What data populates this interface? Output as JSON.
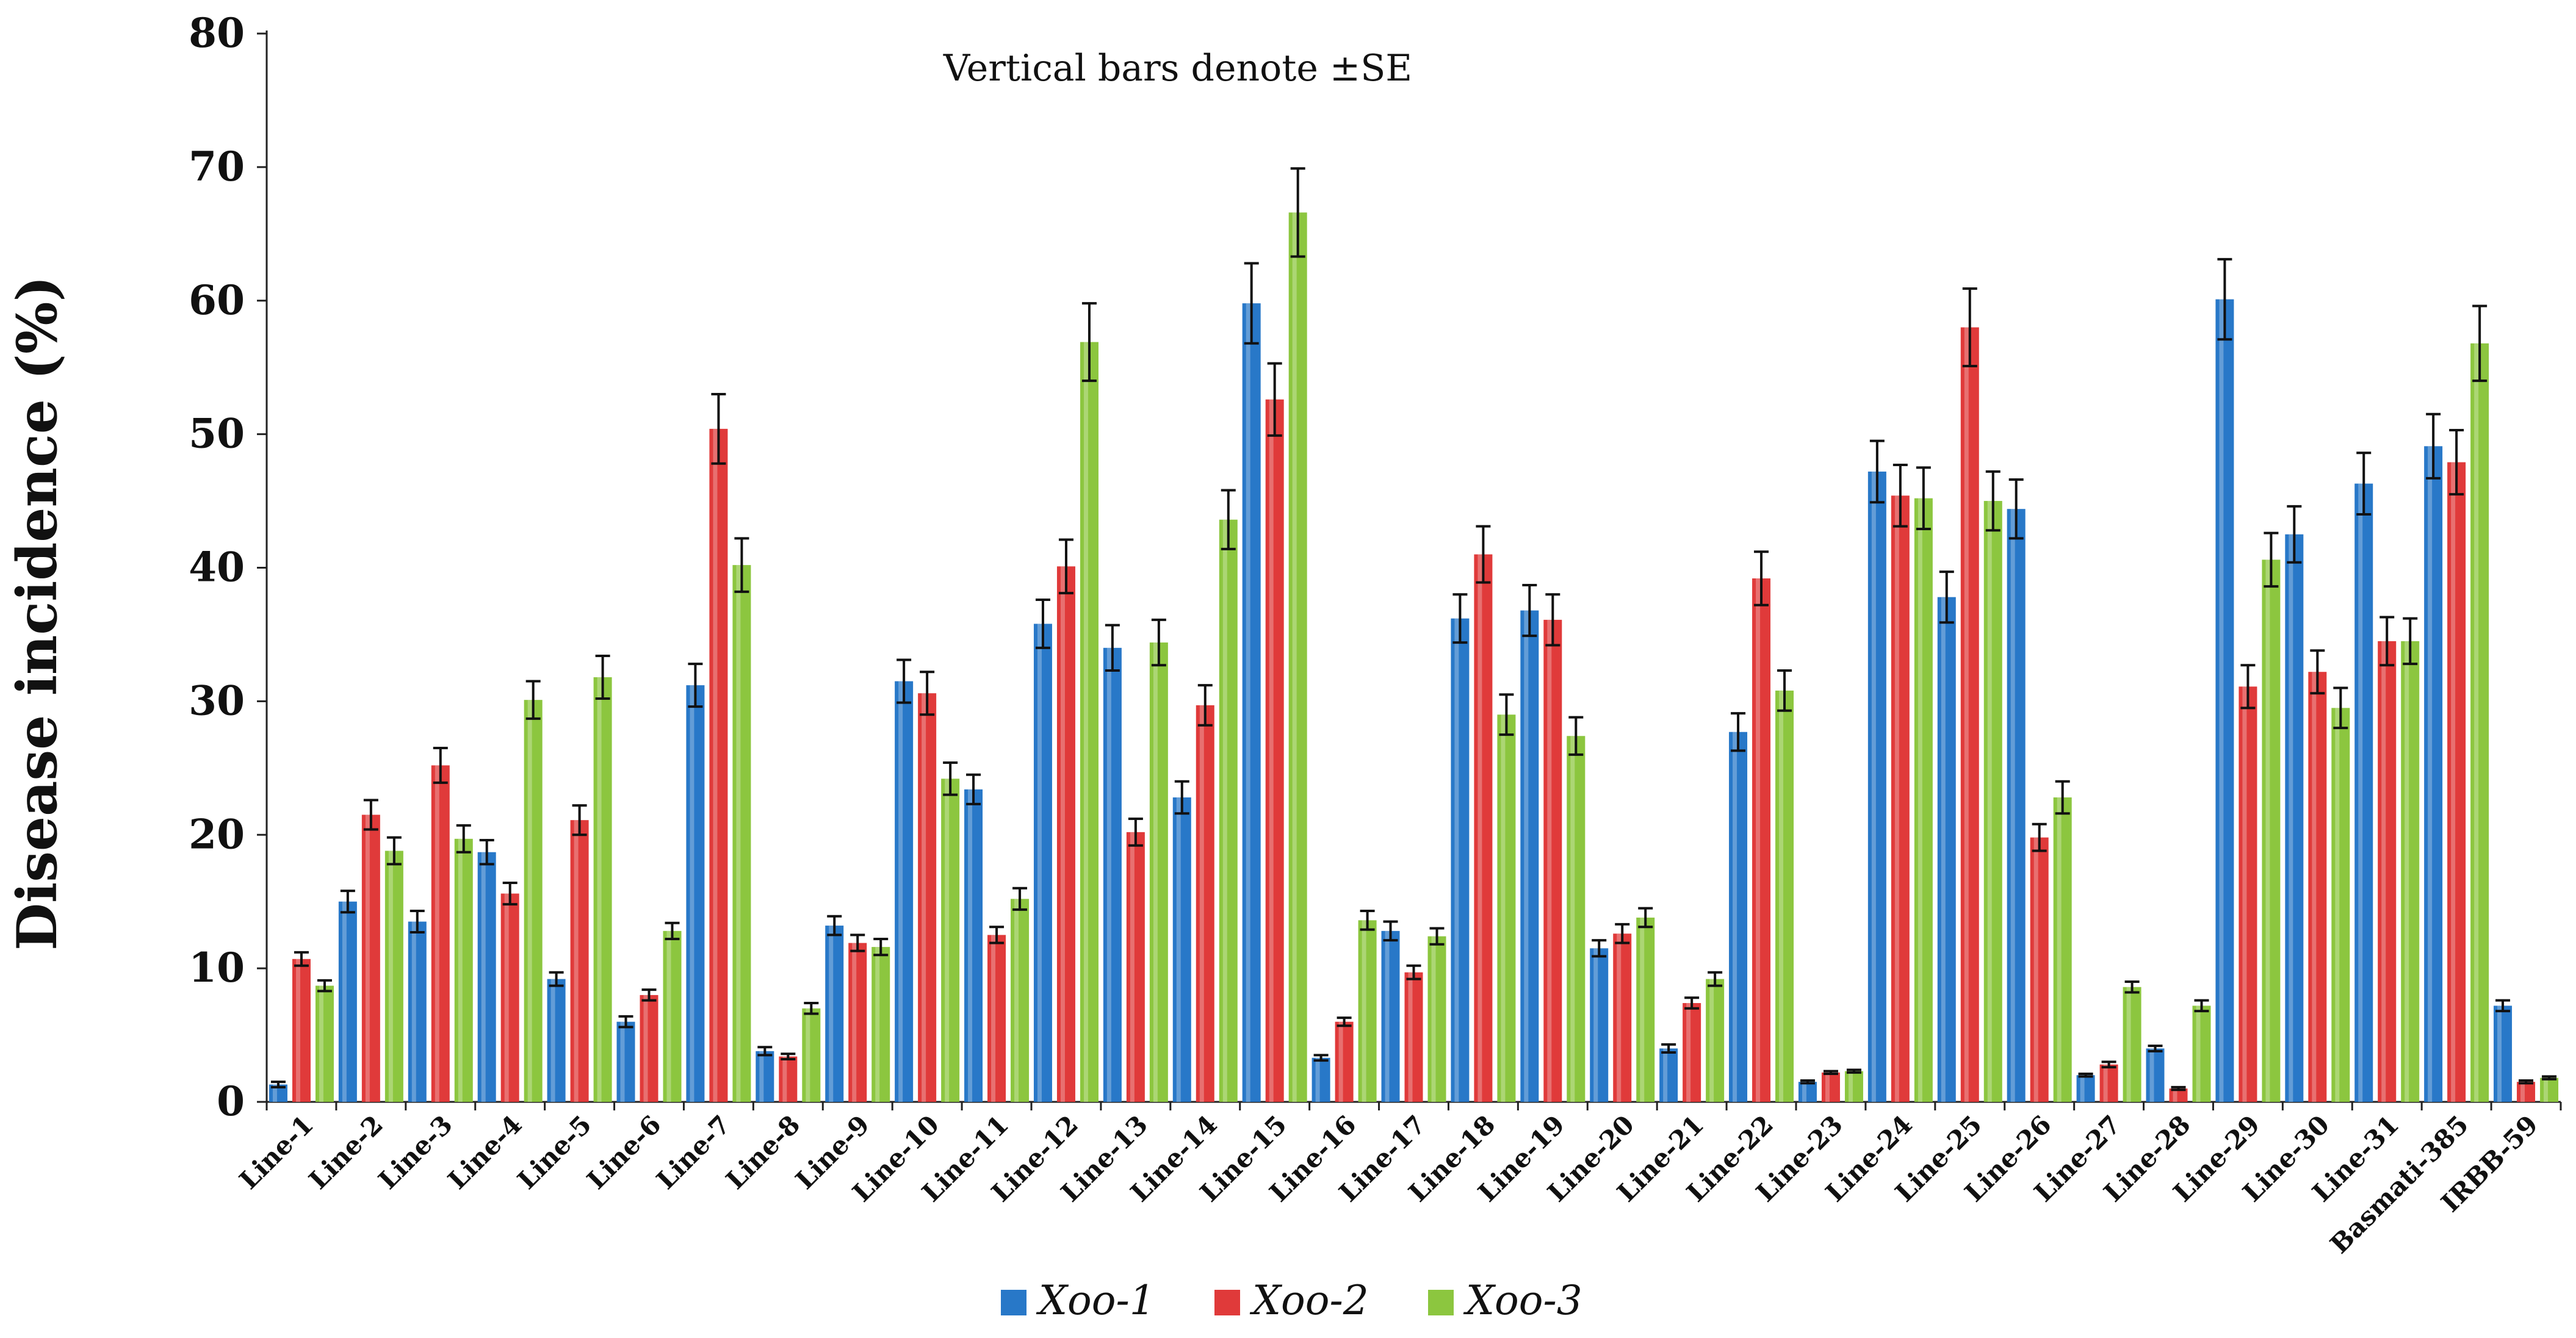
{
  "chart_data": {
    "type": "bar",
    "annotation": "Vertical bars denote ±SE",
    "ylabel": "Disease incidence (%)",
    "xlabel": "",
    "ylim": [
      0,
      80
    ],
    "yticks": [
      0,
      10,
      20,
      30,
      40,
      50,
      60,
      70,
      80
    ],
    "grid": false,
    "legend_position": "bottom-center",
    "categories": [
      "Line-1",
      "Line-2",
      "Line-3",
      "Line-4",
      "Line-5",
      "Line-6",
      "Line-7",
      "Line-8",
      "Line-9",
      "Line-10",
      "Line-11",
      "Line-12",
      "Line-13",
      "Line-14",
      "Line-15",
      "Line-16",
      "Line-17",
      "Line-18",
      "Line-19",
      "Line-20",
      "Line-21",
      "Line-22",
      "Line-23",
      "Line-24",
      "Line-25",
      "Line-26",
      "Line-27",
      "Line-28",
      "Line-29",
      "Line-30",
      "Line-31",
      "Basmati-385",
      "IRBB-59"
    ],
    "series": [
      {
        "name": "Xoo-1",
        "color": "#2878c8",
        "values": [
          1.3,
          15.0,
          13.5,
          18.7,
          9.2,
          6.0,
          31.2,
          3.8,
          13.2,
          31.5,
          23.4,
          35.8,
          34.0,
          22.8,
          59.8,
          3.3,
          12.8,
          36.2,
          36.8,
          11.5,
          4.0,
          27.7,
          1.5,
          47.2,
          37.8,
          44.4,
          2.0,
          4.0,
          60.1,
          42.5,
          46.3,
          49.1,
          7.2
        ],
        "errors": [
          0.2,
          0.8,
          0.8,
          0.9,
          0.5,
          0.4,
          1.6,
          0.3,
          0.7,
          1.6,
          1.1,
          1.8,
          1.7,
          1.2,
          3.0,
          0.2,
          0.7,
          1.8,
          1.9,
          0.6,
          0.3,
          1.4,
          0.1,
          2.3,
          1.9,
          2.2,
          0.1,
          0.2,
          3.0,
          2.1,
          2.3,
          2.4,
          0.4
        ]
      },
      {
        "name": "Xoo-2",
        "color": "#e03a3a",
        "values": [
          10.7,
          21.5,
          25.2,
          15.6,
          21.1,
          8.0,
          50.4,
          3.4,
          11.9,
          30.6,
          12.5,
          40.1,
          20.2,
          29.7,
          52.6,
          6.0,
          9.7,
          41.0,
          36.1,
          12.6,
          7.4,
          39.2,
          2.2,
          45.4,
          58.0,
          19.8,
          2.8,
          1.0,
          31.1,
          32.2,
          34.5,
          47.9,
          1.5
        ],
        "errors": [
          0.5,
          1.1,
          1.3,
          0.8,
          1.1,
          0.4,
          2.6,
          0.2,
          0.6,
          1.6,
          0.6,
          2.0,
          1.0,
          1.5,
          2.7,
          0.3,
          0.5,
          2.1,
          1.9,
          0.7,
          0.4,
          2.0,
          0.1,
          2.3,
          2.9,
          1.0,
          0.2,
          0.1,
          1.6,
          1.6,
          1.8,
          2.4,
          0.1
        ]
      },
      {
        "name": "Xoo-3",
        "color": "#8cc63f",
        "values": [
          8.7,
          18.8,
          19.7,
          30.1,
          31.8,
          12.8,
          40.2,
          7.0,
          11.6,
          24.2,
          15.2,
          56.9,
          34.4,
          43.6,
          66.6,
          13.6,
          12.4,
          29.0,
          27.4,
          13.8,
          9.2,
          30.8,
          2.3,
          45.2,
          45.0,
          22.8,
          8.6,
          7.2,
          40.6,
          29.5,
          34.5,
          56.8,
          1.8
        ],
        "errors": [
          0.4,
          1.0,
          1.0,
          1.4,
          1.6,
          0.6,
          2.0,
          0.4,
          0.6,
          1.2,
          0.8,
          2.9,
          1.7,
          2.2,
          3.3,
          0.7,
          0.6,
          1.5,
          1.4,
          0.7,
          0.5,
          1.5,
          0.1,
          2.3,
          2.2,
          1.2,
          0.4,
          0.4,
          2.0,
          1.5,
          1.7,
          2.8,
          0.1
        ]
      }
    ]
  }
}
